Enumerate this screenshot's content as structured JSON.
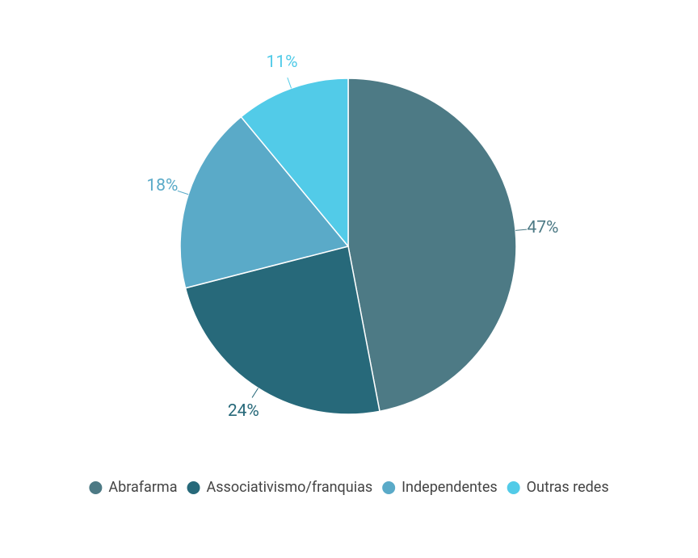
{
  "chart_data": {
    "type": "pie",
    "categories": [
      "Abrafarma",
      "Associativismo/franquias",
      "Independentes",
      "Outras redes"
    ],
    "values": [
      47,
      24,
      18,
      11
    ],
    "value_labels": [
      "47%",
      "24%",
      "18%",
      "11%"
    ],
    "colors": [
      "#4d7a85",
      "#27697a",
      "#5aaac8",
      "#52cbe8"
    ],
    "legend": "bottom"
  }
}
